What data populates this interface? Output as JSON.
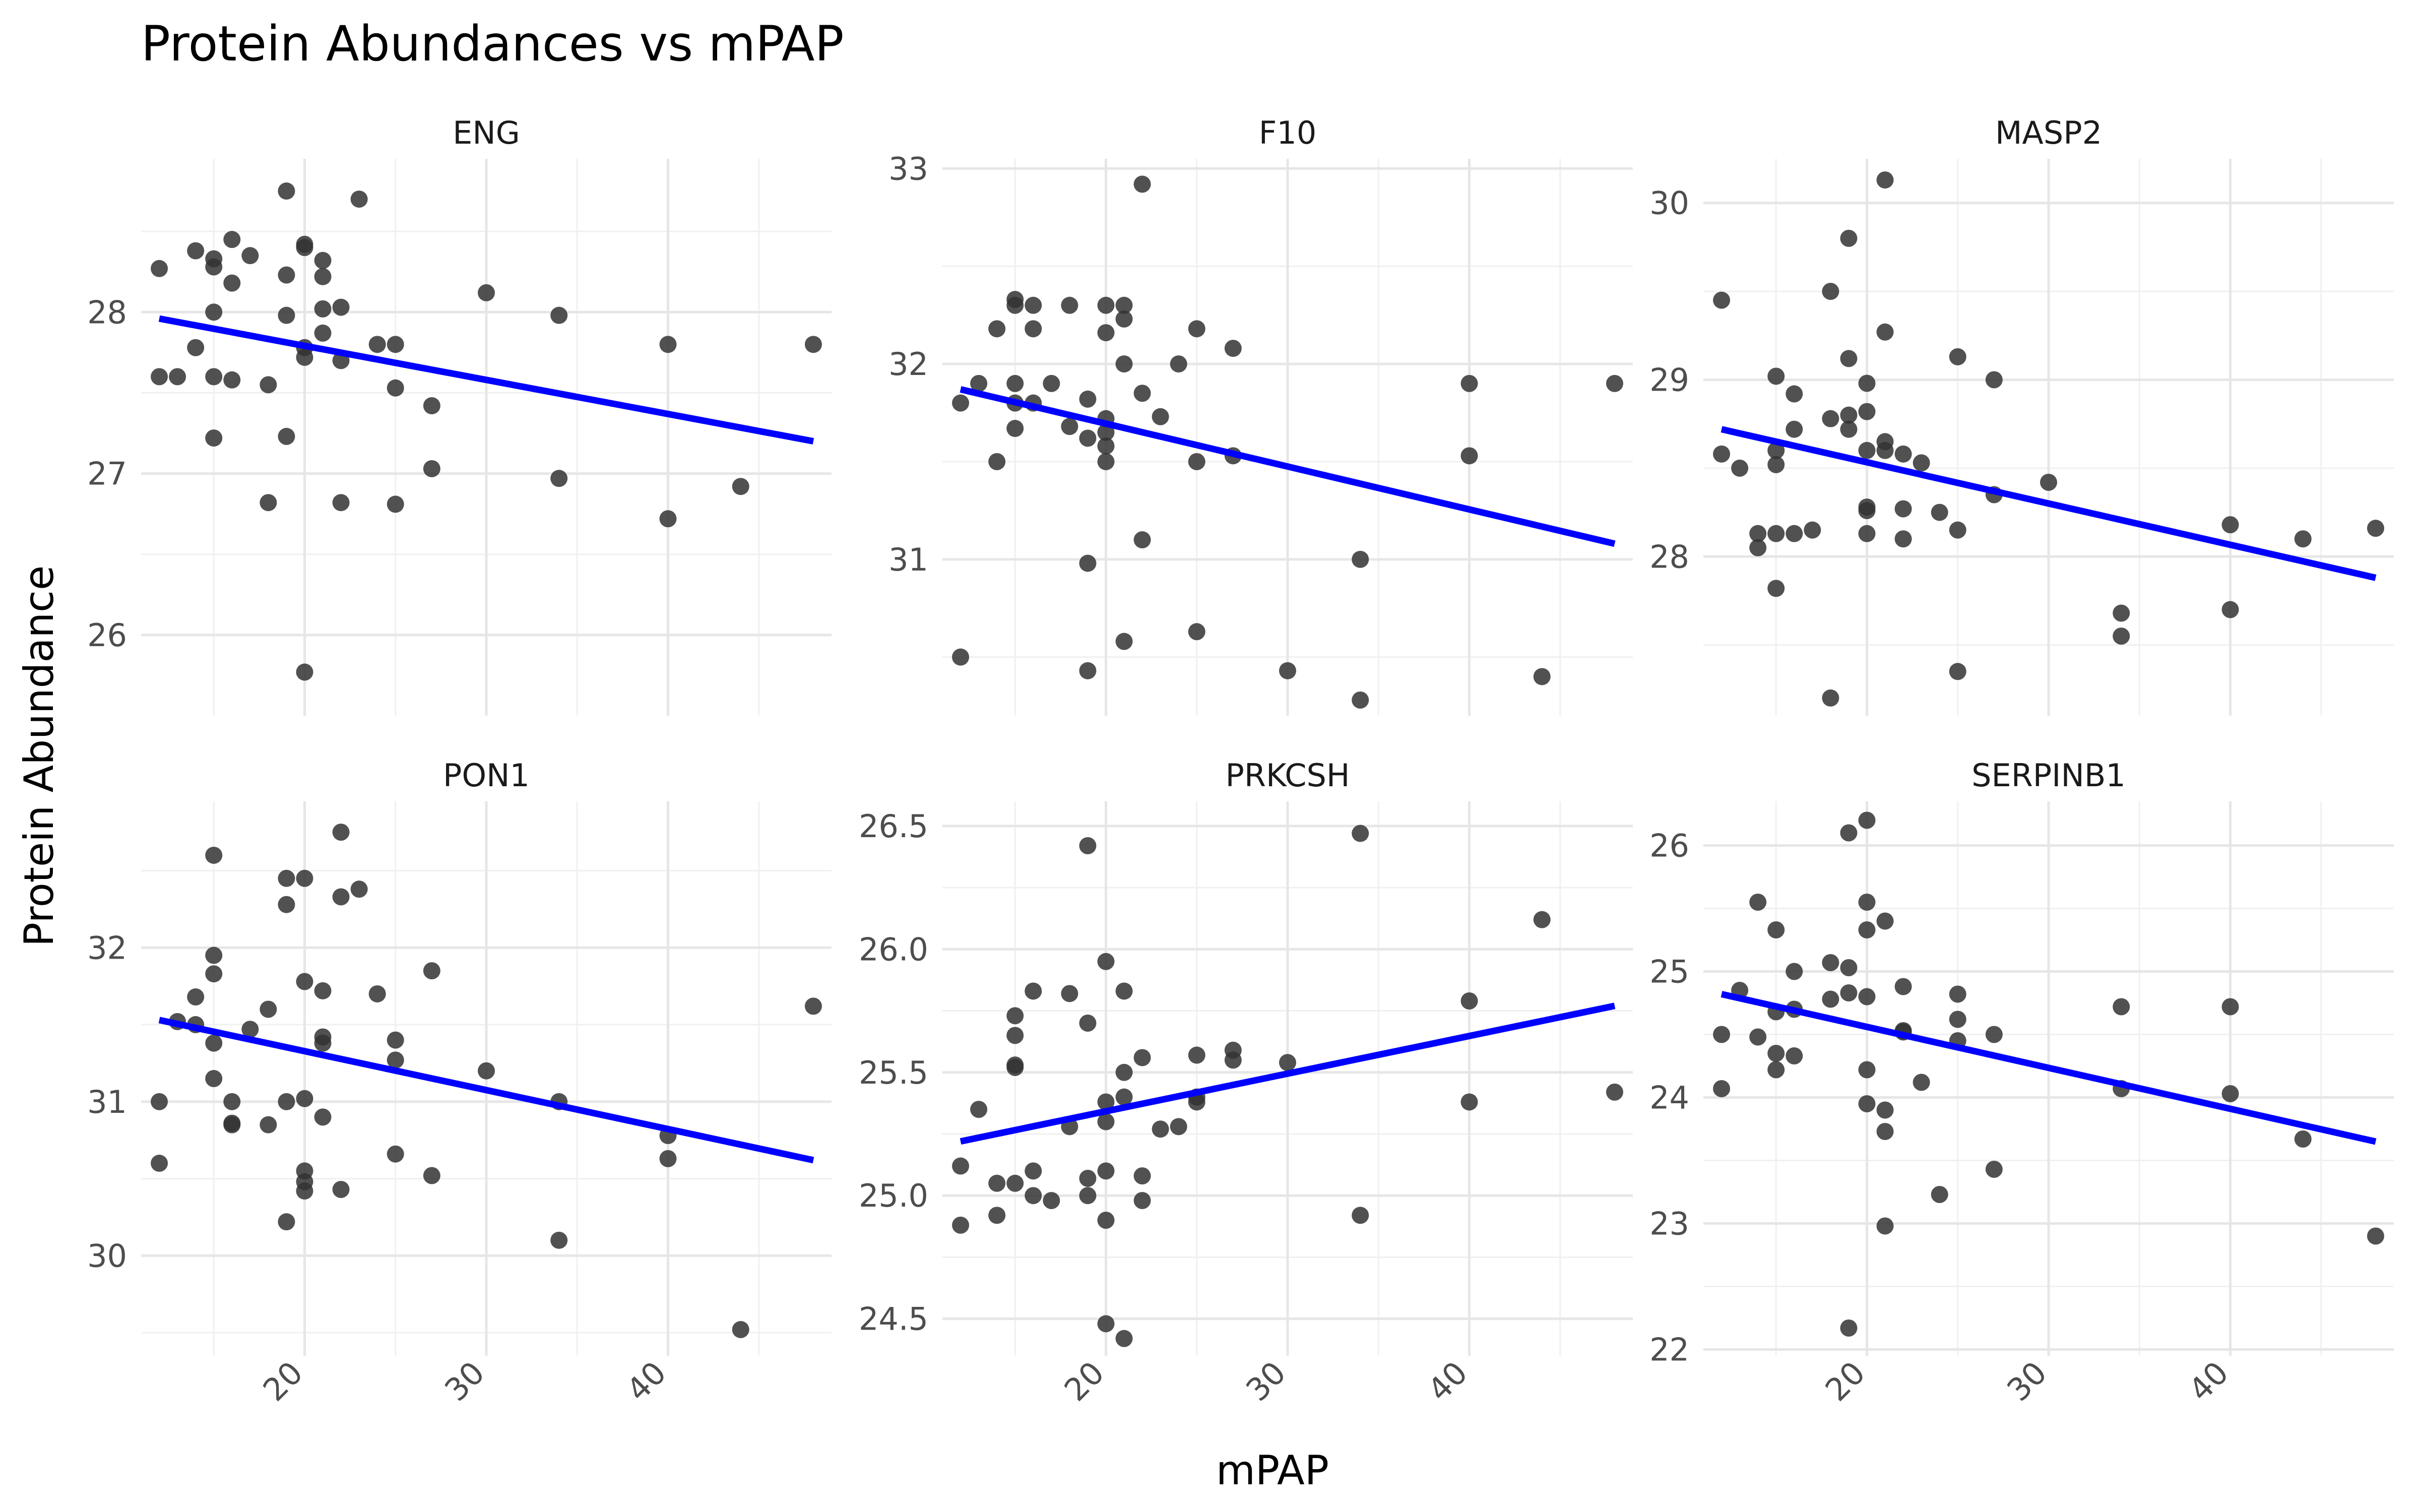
{
  "title": "Protein Abundances vs mPAP",
  "chart_data": {
    "type": "scatter",
    "xlabel": "mPAP",
    "ylabel": "Protein Abundance",
    "xlim": [
      11,
      49
    ],
    "x_ticks": [
      20,
      30,
      40
    ],
    "grid": true,
    "trend_line_color": "#0000ff",
    "point_color": "#333333",
    "panels": [
      {
        "name": "ENG",
        "ylim": [
          25.5,
          28.95
        ],
        "y_ticks": [
          26,
          27,
          28
        ],
        "trend": {
          "x": [
            12,
            48
          ],
          "y": [
            27.96,
            27.2
          ]
        },
        "points": [
          [
            12,
            28.27
          ],
          [
            12,
            27.6
          ],
          [
            13,
            27.6
          ],
          [
            14,
            28.38
          ],
          [
            14,
            27.78
          ],
          [
            15,
            28.33
          ],
          [
            15,
            28.28
          ],
          [
            15,
            28.0
          ],
          [
            15,
            27.6
          ],
          [
            15,
            27.22
          ],
          [
            16,
            28.45
          ],
          [
            16,
            28.18
          ],
          [
            16,
            27.58
          ],
          [
            17,
            28.35
          ],
          [
            18,
            27.55
          ],
          [
            18,
            26.82
          ],
          [
            19,
            28.75
          ],
          [
            19,
            28.23
          ],
          [
            19,
            27.98
          ],
          [
            19,
            27.23
          ],
          [
            20,
            28.42
          ],
          [
            20,
            28.4
          ],
          [
            20,
            27.78
          ],
          [
            20,
            27.72
          ],
          [
            20,
            25.77
          ],
          [
            21,
            28.32
          ],
          [
            21,
            28.22
          ],
          [
            21,
            28.02
          ],
          [
            21,
            27.87
          ],
          [
            22,
            28.03
          ],
          [
            22,
            27.7
          ],
          [
            22,
            26.82
          ],
          [
            23,
            28.7
          ],
          [
            24,
            27.8
          ],
          [
            25,
            27.8
          ],
          [
            25,
            27.53
          ],
          [
            25,
            26.81
          ],
          [
            27,
            27.42
          ],
          [
            27,
            27.03
          ],
          [
            30,
            28.12
          ],
          [
            34,
            27.98
          ],
          [
            34,
            26.97
          ],
          [
            40,
            27.8
          ],
          [
            40,
            26.72
          ],
          [
            44,
            26.92
          ],
          [
            48,
            27.8
          ]
        ]
      },
      {
        "name": "F10",
        "ylim": [
          30.2,
          33.05
        ],
        "y_ticks": [
          31,
          32,
          33
        ],
        "trend": {
          "x": [
            12,
            48
          ],
          "y": [
            31.87,
            31.08
          ]
        },
        "points": [
          [
            12,
            31.8
          ],
          [
            12,
            30.5
          ],
          [
            13,
            31.9
          ],
          [
            14,
            32.18
          ],
          [
            14,
            31.5
          ],
          [
            15,
            32.33
          ],
          [
            15,
            32.3
          ],
          [
            15,
            31.9
          ],
          [
            15,
            31.8
          ],
          [
            15,
            31.67
          ],
          [
            16,
            32.3
          ],
          [
            16,
            32.18
          ],
          [
            16,
            31.8
          ],
          [
            17,
            31.9
          ],
          [
            18,
            32.3
          ],
          [
            18,
            31.68
          ],
          [
            19,
            31.82
          ],
          [
            19,
            31.62
          ],
          [
            19,
            30.98
          ],
          [
            19,
            30.43
          ],
          [
            20,
            32.3
          ],
          [
            20,
            32.16
          ],
          [
            20,
            31.72
          ],
          [
            20,
            31.65
          ],
          [
            20,
            31.58
          ],
          [
            20,
            31.5
          ],
          [
            21,
            32.3
          ],
          [
            21,
            32.23
          ],
          [
            21,
            32.0
          ],
          [
            21,
            30.58
          ],
          [
            22,
            32.92
          ],
          [
            22,
            31.85
          ],
          [
            22,
            31.1
          ],
          [
            23,
            31.73
          ],
          [
            24,
            32.0
          ],
          [
            25,
            32.18
          ],
          [
            25,
            31.5
          ],
          [
            25,
            30.63
          ],
          [
            27,
            32.08
          ],
          [
            27,
            31.53
          ],
          [
            30,
            30.43
          ],
          [
            34,
            31.0
          ],
          [
            34,
            30.28
          ],
          [
            40,
            31.9
          ],
          [
            40,
            31.53
          ],
          [
            44,
            30.4
          ],
          [
            48,
            31.9
          ]
        ]
      },
      {
        "name": "MASP2",
        "ylim": [
          27.1,
          30.25
        ],
        "y_ticks": [
          28,
          29,
          30
        ],
        "trend": {
          "x": [
            12,
            48
          ],
          "y": [
            28.72,
            27.88
          ]
        },
        "points": [
          [
            12,
            29.45
          ],
          [
            12,
            28.58
          ],
          [
            13,
            28.5
          ],
          [
            14,
            28.13
          ],
          [
            14,
            28.05
          ],
          [
            15,
            29.02
          ],
          [
            15,
            28.6
          ],
          [
            15,
            28.52
          ],
          [
            15,
            28.13
          ],
          [
            15,
            27.82
          ],
          [
            16,
            28.92
          ],
          [
            16,
            28.72
          ],
          [
            16,
            28.13
          ],
          [
            17,
            28.15
          ],
          [
            18,
            29.5
          ],
          [
            18,
            28.78
          ],
          [
            18,
            27.2
          ],
          [
            19,
            29.8
          ],
          [
            19,
            29.12
          ],
          [
            19,
            28.8
          ],
          [
            19,
            28.72
          ],
          [
            20,
            28.98
          ],
          [
            20,
            28.82
          ],
          [
            20,
            28.6
          ],
          [
            20,
            28.28
          ],
          [
            20,
            28.26
          ],
          [
            20,
            28.13
          ],
          [
            21,
            30.13
          ],
          [
            21,
            29.27
          ],
          [
            21,
            28.65
          ],
          [
            21,
            28.6
          ],
          [
            22,
            28.58
          ],
          [
            22,
            28.27
          ],
          [
            22,
            28.1
          ],
          [
            23,
            28.53
          ],
          [
            24,
            28.25
          ],
          [
            25,
            29.13
          ],
          [
            25,
            28.15
          ],
          [
            25,
            27.35
          ],
          [
            27,
            29.0
          ],
          [
            27,
            28.35
          ],
          [
            30,
            28.42
          ],
          [
            34,
            27.68
          ],
          [
            34,
            27.55
          ],
          [
            40,
            28.18
          ],
          [
            40,
            27.7
          ],
          [
            44,
            28.1
          ],
          [
            48,
            28.16
          ]
        ]
      },
      {
        "name": "PON1",
        "ylim": [
          29.35,
          32.95
        ],
        "y_ticks": [
          30,
          31,
          32
        ],
        "trend": {
          "x": [
            12,
            48
          ],
          "y": [
            31.53,
            30.62
          ]
        },
        "points": [
          [
            12,
            31.0
          ],
          [
            12,
            30.6
          ],
          [
            13,
            31.52
          ],
          [
            14,
            31.68
          ],
          [
            14,
            31.5
          ],
          [
            15,
            32.6
          ],
          [
            15,
            31.95
          ],
          [
            15,
            31.83
          ],
          [
            15,
            31.38
          ],
          [
            15,
            31.15
          ],
          [
            16,
            31.0
          ],
          [
            16,
            30.86
          ],
          [
            16,
            30.85
          ],
          [
            17,
            31.47
          ],
          [
            18,
            31.6
          ],
          [
            18,
            30.85
          ],
          [
            19,
            32.45
          ],
          [
            19,
            32.28
          ],
          [
            19,
            31.0
          ],
          [
            19,
            30.22
          ],
          [
            20,
            32.45
          ],
          [
            20,
            31.78
          ],
          [
            20,
            31.02
          ],
          [
            20,
            30.55
          ],
          [
            20,
            30.48
          ],
          [
            20,
            30.42
          ],
          [
            21,
            31.72
          ],
          [
            21,
            31.42
          ],
          [
            21,
            31.38
          ],
          [
            21,
            30.9
          ],
          [
            22,
            32.75
          ],
          [
            22,
            32.33
          ],
          [
            22,
            30.43
          ],
          [
            23,
            32.38
          ],
          [
            24,
            31.7
          ],
          [
            25,
            31.4
          ],
          [
            25,
            31.27
          ],
          [
            25,
            30.66
          ],
          [
            27,
            31.85
          ],
          [
            27,
            30.52
          ],
          [
            30,
            31.2
          ],
          [
            34,
            31.0
          ],
          [
            34,
            30.1
          ],
          [
            40,
            30.78
          ],
          [
            40,
            30.63
          ],
          [
            44,
            29.52
          ],
          [
            48,
            31.62
          ]
        ]
      },
      {
        "name": "PRKCSH",
        "ylim": [
          24.35,
          26.6
        ],
        "y_ticks": [
          24.5,
          25.0,
          25.5,
          26.0,
          26.5
        ],
        "y_tick_labels": [
          "24.5",
          "25.0",
          "25.5",
          "26.0",
          "26.5"
        ],
        "trend": {
          "x": [
            12,
            48
          ],
          "y": [
            25.22,
            25.77
          ]
        },
        "points": [
          [
            12,
            25.12
          ],
          [
            12,
            24.88
          ],
          [
            13,
            25.35
          ],
          [
            14,
            25.05
          ],
          [
            14,
            24.92
          ],
          [
            15,
            25.73
          ],
          [
            15,
            25.65
          ],
          [
            15,
            25.53
          ],
          [
            15,
            25.52
          ],
          [
            15,
            25.05
          ],
          [
            16,
            25.83
          ],
          [
            16,
            25.1
          ],
          [
            16,
            25.0
          ],
          [
            17,
            24.98
          ],
          [
            18,
            25.82
          ],
          [
            18,
            25.28
          ],
          [
            19,
            26.42
          ],
          [
            19,
            25.7
          ],
          [
            19,
            25.07
          ],
          [
            19,
            25.0
          ],
          [
            20,
            25.95
          ],
          [
            20,
            25.38
          ],
          [
            20,
            25.3
          ],
          [
            20,
            25.1
          ],
          [
            20,
            24.9
          ],
          [
            20,
            24.48
          ],
          [
            21,
            25.83
          ],
          [
            21,
            25.5
          ],
          [
            21,
            25.4
          ],
          [
            21,
            24.42
          ],
          [
            22,
            25.56
          ],
          [
            22,
            25.08
          ],
          [
            22,
            24.98
          ],
          [
            23,
            25.27
          ],
          [
            24,
            25.28
          ],
          [
            25,
            25.57
          ],
          [
            25,
            25.4
          ],
          [
            25,
            25.38
          ],
          [
            27,
            25.59
          ],
          [
            27,
            25.55
          ],
          [
            30,
            25.54
          ],
          [
            34,
            26.47
          ],
          [
            34,
            24.92
          ],
          [
            40,
            25.79
          ],
          [
            40,
            25.38
          ],
          [
            44,
            26.12
          ],
          [
            48,
            25.42
          ]
        ]
      },
      {
        "name": "SERPINB1",
        "ylim": [
          21.95,
          26.35
        ],
        "y_ticks": [
          22,
          23,
          24,
          25,
          26
        ],
        "trend": {
          "x": [
            12,
            48
          ],
          "y": [
            24.82,
            23.65
          ]
        },
        "points": [
          [
            12,
            24.5
          ],
          [
            12,
            24.07
          ],
          [
            13,
            24.85
          ],
          [
            14,
            25.55
          ],
          [
            14,
            24.48
          ],
          [
            15,
            25.33
          ],
          [
            15,
            24.68
          ],
          [
            15,
            24.35
          ],
          [
            15,
            24.22
          ],
          [
            16,
            25.0
          ],
          [
            16,
            24.7
          ],
          [
            16,
            24.33
          ],
          [
            18,
            25.07
          ],
          [
            18,
            24.78
          ],
          [
            19,
            26.1
          ],
          [
            19,
            25.03
          ],
          [
            19,
            24.83
          ],
          [
            19,
            22.17
          ],
          [
            20,
            26.2
          ],
          [
            20,
            25.55
          ],
          [
            20,
            25.33
          ],
          [
            20,
            24.8
          ],
          [
            20,
            24.22
          ],
          [
            20,
            23.95
          ],
          [
            21,
            25.4
          ],
          [
            21,
            23.9
          ],
          [
            21,
            23.73
          ],
          [
            21,
            22.98
          ],
          [
            22,
            24.88
          ],
          [
            22,
            24.53
          ],
          [
            22,
            24.52
          ],
          [
            23,
            24.12
          ],
          [
            24,
            23.23
          ],
          [
            25,
            24.82
          ],
          [
            25,
            24.62
          ],
          [
            25,
            24.45
          ],
          [
            27,
            24.5
          ],
          [
            27,
            23.43
          ],
          [
            34,
            24.72
          ],
          [
            34,
            24.07
          ],
          [
            40,
            24.72
          ],
          [
            40,
            24.03
          ],
          [
            44,
            23.67
          ],
          [
            48,
            22.9
          ]
        ]
      }
    ]
  }
}
